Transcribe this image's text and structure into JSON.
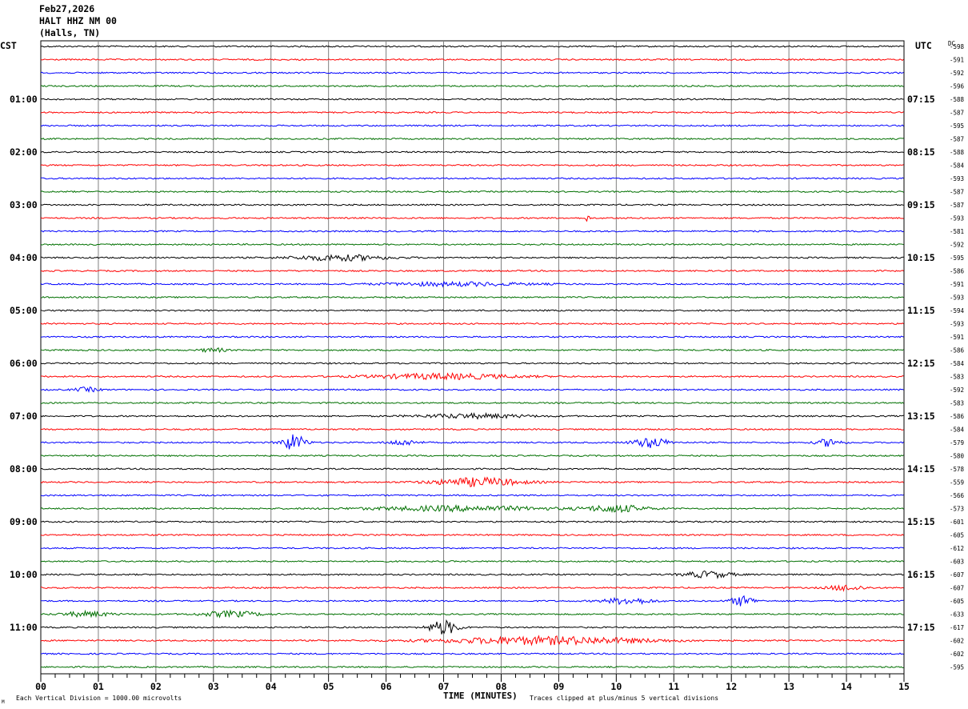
{
  "header": {
    "date": "Feb27,2026",
    "station": "HALT HHZ NM 00",
    "location": "(Halls, TN)"
  },
  "left_tz": "CST",
  "right_tz": "UTC",
  "dc_label": "DC",
  "footer": {
    "scale_note": "Each Vertical Division = 1000.00 microvolts",
    "clip_note": "Traces clipped at plus/minus 5 vertical divisions",
    "corner_mark": "M"
  },
  "colors": {
    "traces": [
      "#000000",
      "#ff0000",
      "#0000ff",
      "#007000"
    ],
    "grid": "#7f7f7f"
  },
  "chart_data": {
    "type": "line",
    "title": "HALT HHZ NM 00",
    "xlabel": "TIME (MINUTES)",
    "ylabel": "",
    "x_ticks": [
      "00",
      "01",
      "02",
      "03",
      "04",
      "05",
      "06",
      "07",
      "08",
      "09",
      "10",
      "11",
      "12",
      "13",
      "14",
      "15"
    ],
    "xlim": [
      0,
      15
    ],
    "minutes_per_line": 15,
    "left_hour_labels": [
      "01:00",
      "02:00",
      "03:00",
      "04:00",
      "05:00",
      "06:00",
      "07:00",
      "08:00",
      "09:00",
      "10:00",
      "11:00"
    ],
    "right_hour_labels": [
      "07:15",
      "08:15",
      "09:15",
      "10:15",
      "11:15",
      "12:15",
      "13:15",
      "14:15",
      "15:15",
      "16:15",
      "17:15"
    ],
    "dc_offsets": [
      -598,
      -591,
      -592,
      -596,
      -588,
      -587,
      -595,
      -587,
      -588,
      -584,
      -593,
      -587,
      -587,
      -593,
      -581,
      -592,
      -595,
      -586,
      -591,
      -593,
      -594,
      -593,
      -591,
      -586,
      -584,
      -583,
      -592,
      -583,
      -586,
      -584,
      -579,
      -580,
      -578,
      -559,
      -566,
      -573,
      -601,
      -605,
      -612,
      -603,
      -607,
      -607,
      -605,
      -633,
      -617,
      -602,
      -602,
      -595
    ],
    "events": [
      {
        "line": 13,
        "minute": 9.5,
        "amp": 2.2,
        "width": 0.06
      },
      {
        "line": 16,
        "minute": 5.2,
        "amp": 1.6,
        "width": 1.6
      },
      {
        "line": 18,
        "minute": 7.2,
        "amp": 1.0,
        "width": 2.5
      },
      {
        "line": 23,
        "minute": 3.0,
        "amp": 1.2,
        "width": 0.4
      },
      {
        "line": 25,
        "minute": 7.0,
        "amp": 1.5,
        "width": 2.5
      },
      {
        "line": 26,
        "minute": 0.8,
        "amp": 1.2,
        "width": 0.4
      },
      {
        "line": 28,
        "minute": 7.5,
        "amp": 1.2,
        "width": 1.8
      },
      {
        "line": 30,
        "minute": 4.4,
        "amp": 4.5,
        "width": 0.4
      },
      {
        "line": 30,
        "minute": 10.6,
        "amp": 2.8,
        "width": 0.6
      },
      {
        "line": 30,
        "minute": 13.7,
        "amp": 2.2,
        "width": 0.4
      },
      {
        "line": 30,
        "minute": 6.3,
        "amp": 1.5,
        "width": 0.5
      },
      {
        "line": 33,
        "minute": 7.6,
        "amp": 2.4,
        "width": 1.5
      },
      {
        "line": 35,
        "minute": 7.3,
        "amp": 1.4,
        "width": 3.0
      },
      {
        "line": 35,
        "minute": 10.0,
        "amp": 2.0,
        "width": 1.0
      },
      {
        "line": 40,
        "minute": 11.6,
        "amp": 1.8,
        "width": 0.8
      },
      {
        "line": 41,
        "minute": 14.0,
        "amp": 1.6,
        "width": 0.6
      },
      {
        "line": 42,
        "minute": 12.2,
        "amp": 2.8,
        "width": 0.4
      },
      {
        "line": 42,
        "minute": 10.2,
        "amp": 1.8,
        "width": 0.8
      },
      {
        "line": 43,
        "minute": 3.3,
        "amp": 1.6,
        "width": 1.0
      },
      {
        "line": 43,
        "minute": 0.8,
        "amp": 1.4,
        "width": 0.8
      },
      {
        "line": 44,
        "minute": 7.0,
        "amp": 4.0,
        "width": 0.5
      },
      {
        "line": 45,
        "minute": 8.8,
        "amp": 2.2,
        "width": 3.5
      }
    ]
  }
}
